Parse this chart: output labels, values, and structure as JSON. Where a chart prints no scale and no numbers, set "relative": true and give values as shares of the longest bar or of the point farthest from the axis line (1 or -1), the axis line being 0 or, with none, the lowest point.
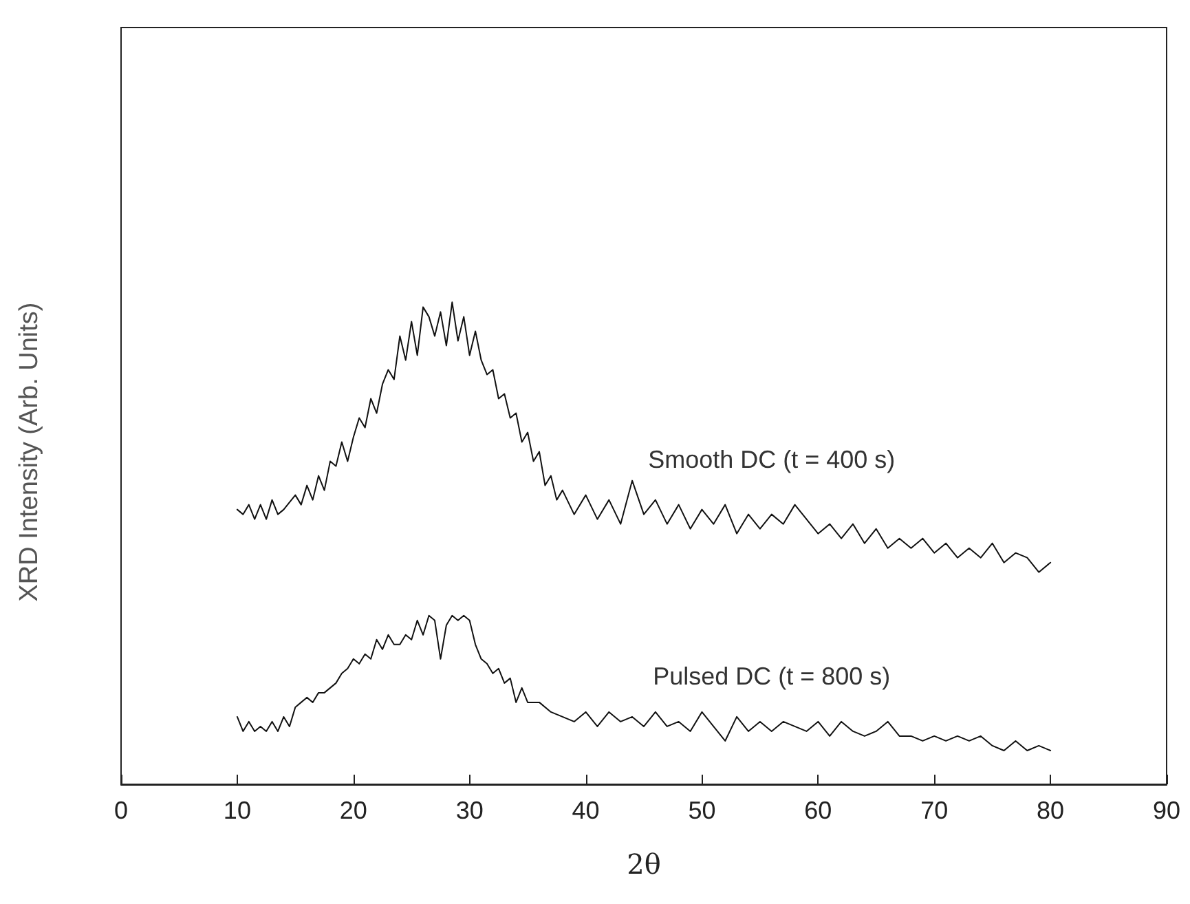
{
  "chart_data": {
    "type": "line",
    "relative": true,
    "xlabel": "2θ",
    "ylabel": "XRD Intensity (Arb. Units)",
    "xlim": [
      0,
      90
    ],
    "xticks": [
      0,
      10,
      20,
      30,
      40,
      50,
      60,
      70,
      80,
      90
    ],
    "grid": false,
    "legend": false,
    "marker": "none",
    "line_style": "solid",
    "series": [
      {
        "name": "Smooth DC (t = 400 s)",
        "color": "#111111",
        "x": [
          10,
          10.5,
          11,
          11.5,
          12,
          12.5,
          13,
          13.5,
          14,
          15,
          15.5,
          16,
          16.5,
          17,
          17.5,
          18,
          18.5,
          19,
          19.5,
          20,
          20.5,
          21,
          21.5,
          22,
          22.5,
          23,
          23.5,
          24,
          24.5,
          25,
          25.5,
          26,
          26.5,
          27,
          27.5,
          28,
          28.5,
          29,
          29.5,
          30,
          30.5,
          31,
          31.5,
          32,
          32.5,
          33,
          33.5,
          34,
          34.5,
          35,
          35.5,
          36,
          36.5,
          37,
          37.5,
          38,
          39,
          40,
          41,
          42,
          43,
          44,
          45,
          46,
          47,
          48,
          49,
          50,
          51,
          52,
          53,
          54,
          55,
          56,
          57,
          58,
          59,
          60,
          61,
          62,
          63,
          64,
          65,
          66,
          67,
          68,
          69,
          70,
          71,
          72,
          73,
          74,
          75,
          76,
          77,
          78,
          79,
          80
        ],
        "values": [
          0.57,
          0.56,
          0.58,
          0.55,
          0.58,
          0.55,
          0.59,
          0.56,
          0.57,
          0.6,
          0.58,
          0.62,
          0.59,
          0.64,
          0.61,
          0.67,
          0.66,
          0.71,
          0.67,
          0.72,
          0.76,
          0.74,
          0.8,
          0.77,
          0.83,
          0.86,
          0.84,
          0.93,
          0.88,
          0.96,
          0.89,
          0.99,
          0.97,
          0.93,
          0.98,
          0.91,
          1.0,
          0.92,
          0.97,
          0.89,
          0.94,
          0.88,
          0.85,
          0.86,
          0.8,
          0.81,
          0.76,
          0.77,
          0.71,
          0.73,
          0.67,
          0.69,
          0.62,
          0.64,
          0.59,
          0.61,
          0.56,
          0.6,
          0.55,
          0.59,
          0.54,
          0.63,
          0.56,
          0.59,
          0.54,
          0.58,
          0.53,
          0.57,
          0.54,
          0.58,
          0.52,
          0.56,
          0.53,
          0.56,
          0.54,
          0.58,
          0.55,
          0.52,
          0.54,
          0.51,
          0.54,
          0.5,
          0.53,
          0.49,
          0.51,
          0.49,
          0.51,
          0.48,
          0.5,
          0.47,
          0.49,
          0.47,
          0.5,
          0.46,
          0.48,
          0.47,
          0.44,
          0.46
        ]
      },
      {
        "name": "Pulsed DC (t = 800 s)",
        "color": "#111111",
        "x": [
          10,
          10.5,
          11,
          11.5,
          12,
          12.5,
          13,
          13.5,
          14,
          14.5,
          15,
          15.5,
          16,
          16.5,
          17,
          17.5,
          18,
          18.5,
          19,
          19.5,
          20,
          20.5,
          21,
          21.5,
          22,
          22.5,
          23,
          23.5,
          24,
          24.5,
          25,
          25.5,
          26,
          26.5,
          27,
          27.5,
          28,
          28.5,
          29,
          29.5,
          30,
          30.5,
          31,
          31.5,
          32,
          32.5,
          33,
          33.5,
          34,
          34.5,
          35,
          36,
          37,
          38,
          39,
          40,
          41,
          42,
          43,
          44,
          45,
          46,
          47,
          48,
          49,
          50,
          51,
          52,
          53,
          54,
          55,
          56,
          57,
          58,
          59,
          60,
          61,
          62,
          63,
          64,
          65,
          66,
          67,
          68,
          69,
          70,
          71,
          72,
          73,
          74,
          75,
          76,
          77,
          78,
          79,
          80
        ],
        "values": [
          0.14,
          0.11,
          0.13,
          0.11,
          0.12,
          0.11,
          0.13,
          0.11,
          0.14,
          0.12,
          0.16,
          0.17,
          0.18,
          0.17,
          0.19,
          0.19,
          0.2,
          0.21,
          0.23,
          0.24,
          0.26,
          0.25,
          0.27,
          0.26,
          0.3,
          0.28,
          0.31,
          0.29,
          0.29,
          0.31,
          0.3,
          0.34,
          0.31,
          0.35,
          0.34,
          0.26,
          0.33,
          0.35,
          0.34,
          0.35,
          0.34,
          0.29,
          0.26,
          0.25,
          0.23,
          0.24,
          0.21,
          0.22,
          0.17,
          0.2,
          0.17,
          0.17,
          0.15,
          0.14,
          0.13,
          0.15,
          0.12,
          0.15,
          0.13,
          0.14,
          0.12,
          0.15,
          0.12,
          0.13,
          0.11,
          0.15,
          0.12,
          0.09,
          0.14,
          0.11,
          0.13,
          0.11,
          0.13,
          0.12,
          0.11,
          0.13,
          0.1,
          0.13,
          0.11,
          0.1,
          0.11,
          0.13,
          0.1,
          0.1,
          0.09,
          0.1,
          0.09,
          0.1,
          0.09,
          0.1,
          0.08,
          0.07,
          0.09,
          0.07,
          0.08,
          0.07
        ]
      }
    ]
  }
}
